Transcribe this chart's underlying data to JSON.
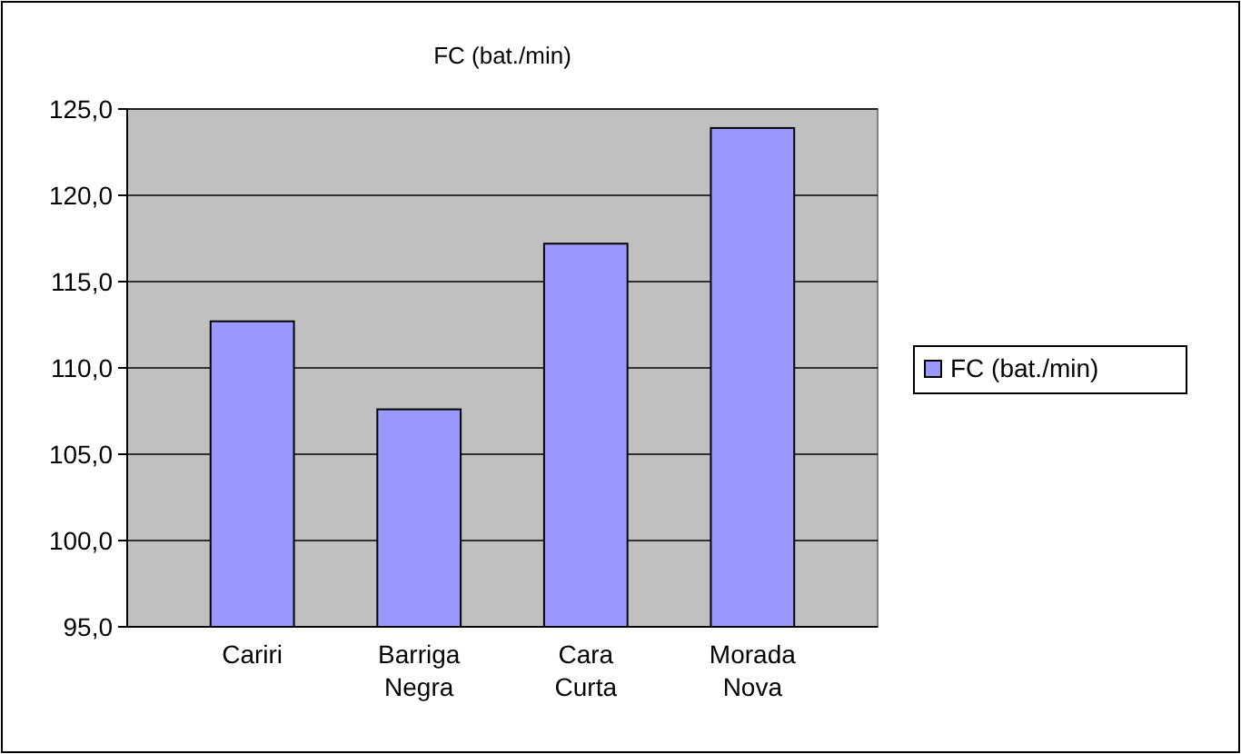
{
  "chart_data": {
    "type": "bar",
    "title": "FC (bat./min)",
    "categories": [
      "Cariri",
      "Barriga Negra",
      "Cara Curta",
      "Morada Nova"
    ],
    "series": [
      {
        "name": "FC (bat./min)",
        "color": "#9999ff",
        "values": [
          112.7,
          107.6,
          117.2,
          123.9
        ]
      }
    ],
    "ylim": [
      95,
      125
    ],
    "yticks": [
      {
        "value": 95,
        "label": "95,0"
      },
      {
        "value": 100,
        "label": "100,0"
      },
      {
        "value": 105,
        "label": "105,0"
      },
      {
        "value": 110,
        "label": "110,0"
      },
      {
        "value": 115,
        "label": "115,0"
      },
      {
        "value": 120,
        "label": "120,0"
      },
      {
        "value": 125,
        "label": "125,0"
      }
    ],
    "grid": "y",
    "legend": "right"
  }
}
